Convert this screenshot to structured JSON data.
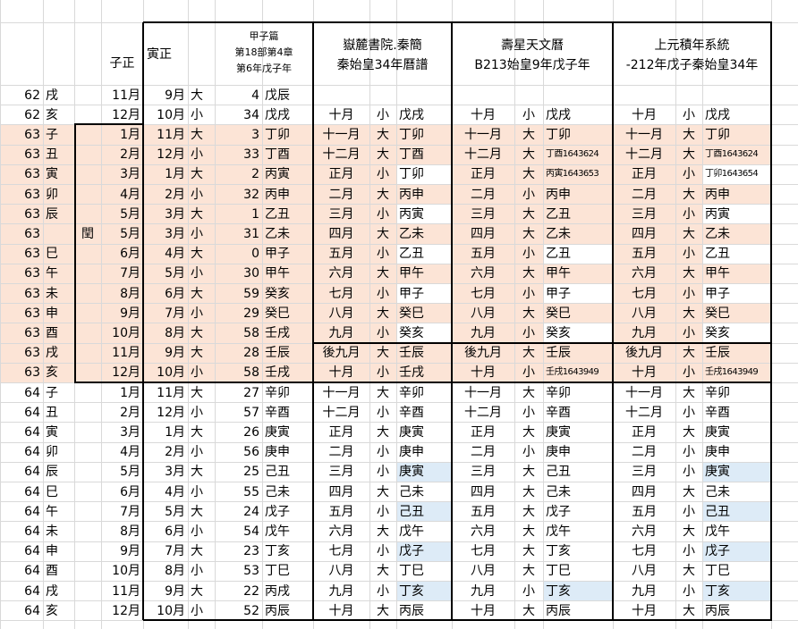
{
  "header": {
    "zi": "子正",
    "yin": "寅正",
    "jiazi": [
      "甲子篇",
      "第18部第4章",
      "第6年戊子年"
    ],
    "sections": [
      [
        "嶽麓書院.秦簡",
        "秦始皇34年曆譜"
      ],
      [
        "壽星天文曆",
        "B213始皇9年戊子年"
      ],
      [
        "上元積年系統",
        "-212年戊子秦始皇34年"
      ]
    ]
  },
  "rows": [
    [
      62,
      "戌",
      null,
      "11月",
      "9月",
      "大",
      4,
      "戊辰",
      null,
      null,
      null,
      null,
      null,
      null,
      null,
      null,
      null
    ],
    [
      62,
      "亥",
      null,
      "12月",
      "10月",
      "小",
      34,
      "戊戌",
      "十月",
      "小",
      "戊戌",
      "十月",
      "小",
      "戊戌",
      "十月",
      "小",
      "戊戌"
    ],
    [
      63,
      "子",
      null,
      "1月",
      "11月",
      "大",
      3,
      "丁卯",
      "十一月",
      "大",
      "丁卯",
      "十一月",
      "大",
      "丁卯",
      "十一月",
      "大",
      "丁卯"
    ],
    [
      63,
      "丑",
      null,
      "2月",
      "12月",
      "小",
      33,
      "丁酉",
      "十二月",
      "大",
      "丁酉",
      "十二月",
      "大",
      "丁酉1643624",
      "十二月",
      "大",
      "丁酉1643624"
    ],
    [
      63,
      "寅",
      null,
      "3月",
      "1月",
      "大",
      2,
      "丙寅",
      "正月",
      "小",
      "丁卯",
      "正月",
      "大",
      "丙寅1643653",
      "正月",
      "小",
      "丁卯1643654"
    ],
    [
      63,
      "卯",
      null,
      "4月",
      "2月",
      "小",
      32,
      "丙申",
      "二月",
      "大",
      "丙申",
      "二月",
      "小",
      "丙申",
      "二月",
      "大",
      "丙申"
    ],
    [
      63,
      "辰",
      null,
      "5月",
      "3月",
      "大",
      1,
      "乙丑",
      "三月",
      "小",
      "丙寅",
      "三月",
      "大",
      "乙丑",
      "三月",
      "小",
      "丙寅"
    ],
    [
      63,
      null,
      "閏",
      "5月",
      "3月",
      "小",
      31,
      "乙未",
      "四月",
      "大",
      "乙未",
      "四月",
      "大",
      "乙未",
      "四月",
      "大",
      "乙未"
    ],
    [
      63,
      "巳",
      null,
      "6月",
      "4月",
      "大",
      0,
      "甲子",
      "五月",
      "小",
      "乙丑",
      "五月",
      "小",
      "乙丑",
      "五月",
      "小",
      "乙丑"
    ],
    [
      63,
      "午",
      null,
      "7月",
      "5月",
      "小",
      30,
      "甲午",
      "六月",
      "大",
      "甲午",
      "六月",
      "大",
      "甲午",
      "六月",
      "大",
      "甲午"
    ],
    [
      63,
      "未",
      null,
      "8月",
      "6月",
      "大",
      59,
      "癸亥",
      "七月",
      "小",
      "甲子",
      "七月",
      "小",
      "甲子",
      "七月",
      "小",
      "甲子"
    ],
    [
      63,
      "申",
      null,
      "9月",
      "7月",
      "小",
      29,
      "癸巳",
      "八月",
      "大",
      "癸巳",
      "八月",
      "大",
      "癸巳",
      "八月",
      "大",
      "癸巳"
    ],
    [
      63,
      "酉",
      null,
      "10月",
      "8月",
      "大",
      58,
      "壬戌",
      "九月",
      "小",
      "癸亥",
      "九月",
      "小",
      "癸亥",
      "九月",
      "小",
      "癸亥"
    ],
    [
      63,
      "戌",
      null,
      "11月",
      "9月",
      "大",
      28,
      "壬辰",
      "後九月",
      "大",
      "壬辰",
      "後九月",
      "大",
      "壬辰",
      "後九月",
      "大",
      "壬辰"
    ],
    [
      63,
      "亥",
      null,
      "12月",
      "10月",
      "小",
      58,
      "壬戌",
      "十月",
      "小",
      "壬戌",
      "十月",
      "小",
      "壬戌1643949",
      "十月",
      "小",
      "壬戌1643949"
    ],
    [
      64,
      "子",
      null,
      "1月",
      "11月",
      "大",
      27,
      "辛卯",
      "十一月",
      "大",
      "辛卯",
      "十一月",
      "大",
      "辛卯",
      "十一月",
      "大",
      "辛卯"
    ],
    [
      64,
      "丑",
      null,
      "2月",
      "12月",
      "小",
      57,
      "辛酉",
      "十二月",
      "小",
      "辛酉",
      "十二月",
      "小",
      "辛酉",
      "十二月",
      "小",
      "辛酉"
    ],
    [
      64,
      "寅",
      null,
      "3月",
      "1月",
      "大",
      26,
      "庚寅",
      "正月",
      "大",
      "庚寅",
      "正月",
      "大",
      "庚寅",
      "正月",
      "大",
      "庚寅"
    ],
    [
      64,
      "卯",
      null,
      "4月",
      "2月",
      "小",
      56,
      "庚申",
      "二月",
      "小",
      "庚申",
      "二月",
      "小",
      "庚申",
      "二月",
      "小",
      "庚申"
    ],
    [
      64,
      "辰",
      null,
      "5月",
      "3月",
      "大",
      25,
      "己丑",
      "三月",
      "小",
      "庚寅",
      "三月",
      "大",
      "己丑",
      "三月",
      "小",
      "庚寅"
    ],
    [
      64,
      "巳",
      null,
      "6月",
      "4月",
      "小",
      55,
      "己未",
      "四月",
      "大",
      "己未",
      "四月",
      "大",
      "己未",
      "四月",
      "大",
      "己未"
    ],
    [
      64,
      "午",
      null,
      "7月",
      "5月",
      "大",
      24,
      "戊子",
      "五月",
      "小",
      "己丑",
      "五月",
      "大",
      "戊子",
      "五月",
      "小",
      "己丑"
    ],
    [
      64,
      "未",
      null,
      "8月",
      "6月",
      "小",
      54,
      "戊午",
      "六月",
      "大",
      "戊午",
      "六月",
      "大",
      "戊午",
      "六月",
      "大",
      "戊午"
    ],
    [
      64,
      "申",
      null,
      "9月",
      "7月",
      "大",
      23,
      "丁亥",
      "七月",
      "小",
      "戊子",
      "七月",
      "大",
      "丁亥",
      "七月",
      "小",
      "戊子"
    ],
    [
      64,
      "酉",
      null,
      "10月",
      "8月",
      "小",
      53,
      "丁巳",
      "八月",
      "大",
      "丁巳",
      "八月",
      "大",
      "丁巳",
      "八月",
      "大",
      "丁巳"
    ],
    [
      64,
      "戌",
      null,
      "11月",
      "9月",
      "大",
      22,
      "丙戌",
      "九月",
      "小",
      "丁亥",
      "九月",
      "小",
      "丁亥",
      "九月",
      "小",
      "丁亥"
    ],
    [
      64,
      "亥",
      null,
      "12月",
      "10月",
      "小",
      52,
      "丙辰",
      "十月",
      "大",
      "丙辰",
      "十月",
      "大",
      "丙辰",
      "十月",
      "大",
      "丙辰"
    ]
  ]
}
